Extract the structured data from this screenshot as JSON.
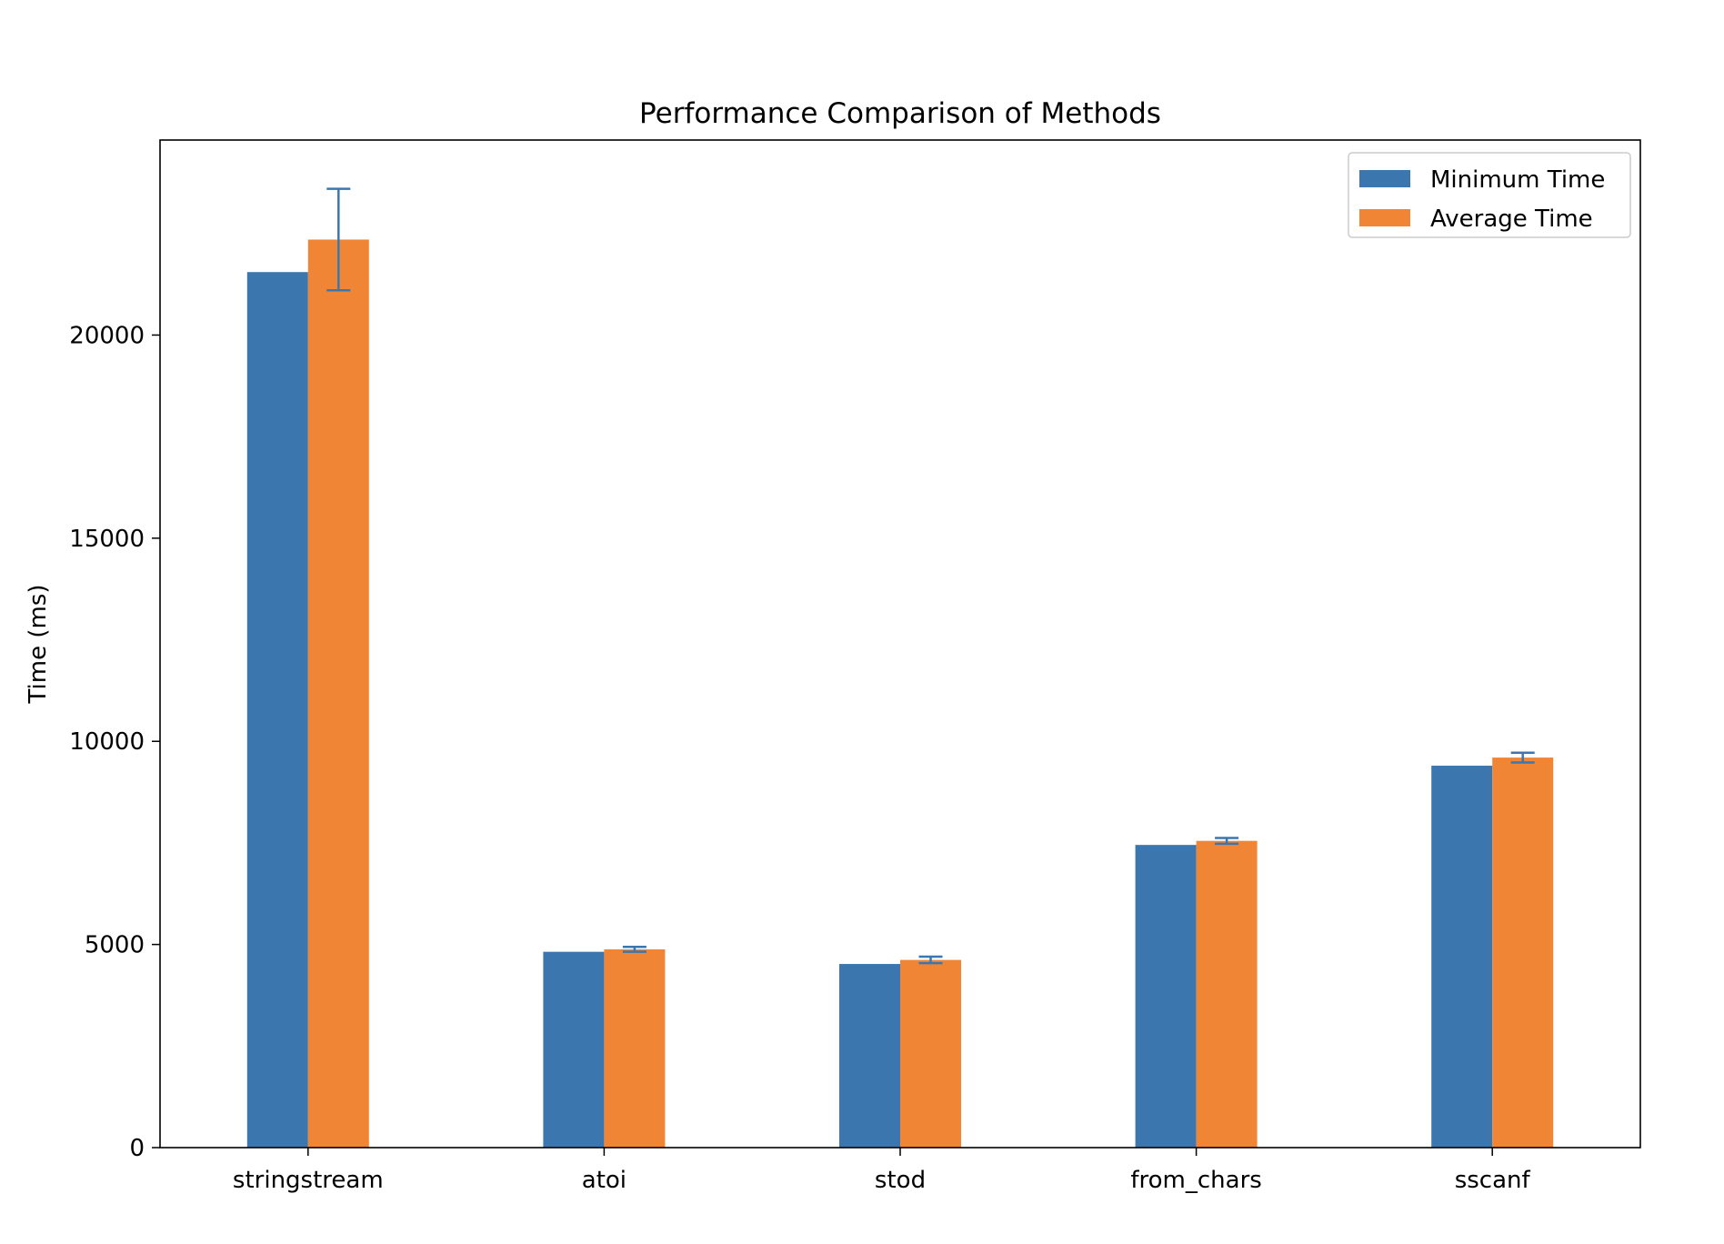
{
  "chart_data": {
    "type": "bar",
    "title": "Performance Comparison of Methods",
    "xlabel": "",
    "ylabel": "Time (ms)",
    "categories": [
      "stringstream",
      "atoi",
      "stod",
      "from_chars",
      "sscanf"
    ],
    "series": [
      {
        "name": "Minimum Time",
        "values": [
          21550,
          4820,
          4520,
          7450,
          9400
        ],
        "color": "#3b77ae"
      },
      {
        "name": "Average Time",
        "values": [
          22350,
          4880,
          4620,
          7550,
          9600
        ],
        "errors": [
          1250,
          60,
          80,
          70,
          120
        ],
        "color": "#f08536",
        "error_color": "#3b77ae"
      }
    ],
    "ylim": [
      0,
      24800
    ],
    "yticks": [
      0,
      5000,
      10000,
      15000,
      20000
    ],
    "ytick_labels": [
      "0",
      "5000",
      "10000",
      "15000",
      "20000"
    ],
    "grid": false,
    "legend_position": "top-right"
  }
}
